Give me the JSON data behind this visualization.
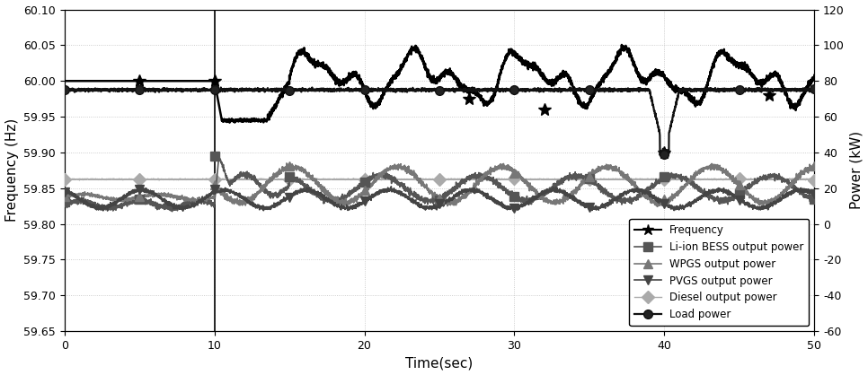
{
  "title": "",
  "xlabel": "Time(sec)",
  "ylabel_left": "Frequency (Hz)",
  "ylabel_right": "Power (kW)",
  "xlim": [
    0,
    50
  ],
  "ylim_left": [
    59.65,
    60.1
  ],
  "ylim_right": [
    -60,
    120
  ],
  "yticks_left": [
    59.65,
    59.7,
    59.75,
    59.8,
    59.85,
    59.9,
    59.95,
    60.0,
    60.05,
    60.1
  ],
  "yticks_right": [
    -60,
    -40,
    -20,
    0,
    20,
    40,
    60,
    80,
    100,
    120
  ],
  "xticks": [
    0,
    10,
    20,
    30,
    40,
    50
  ],
  "vertical_line_x": 10,
  "background_color": "#ffffff",
  "grid_color": "#c0c0c0",
  "freq_color": "#000000",
  "bess_color": "#555555",
  "wpgs_color": "#777777",
  "pvgs_color": "#444444",
  "diesel_color": "#aaaaaa",
  "load_color": "#111111",
  "legend_labels": [
    "Frequency",
    "Li-ion BESS output power",
    "WPGS output power",
    "PVGS output power",
    "Diesel output power",
    "Load power"
  ]
}
